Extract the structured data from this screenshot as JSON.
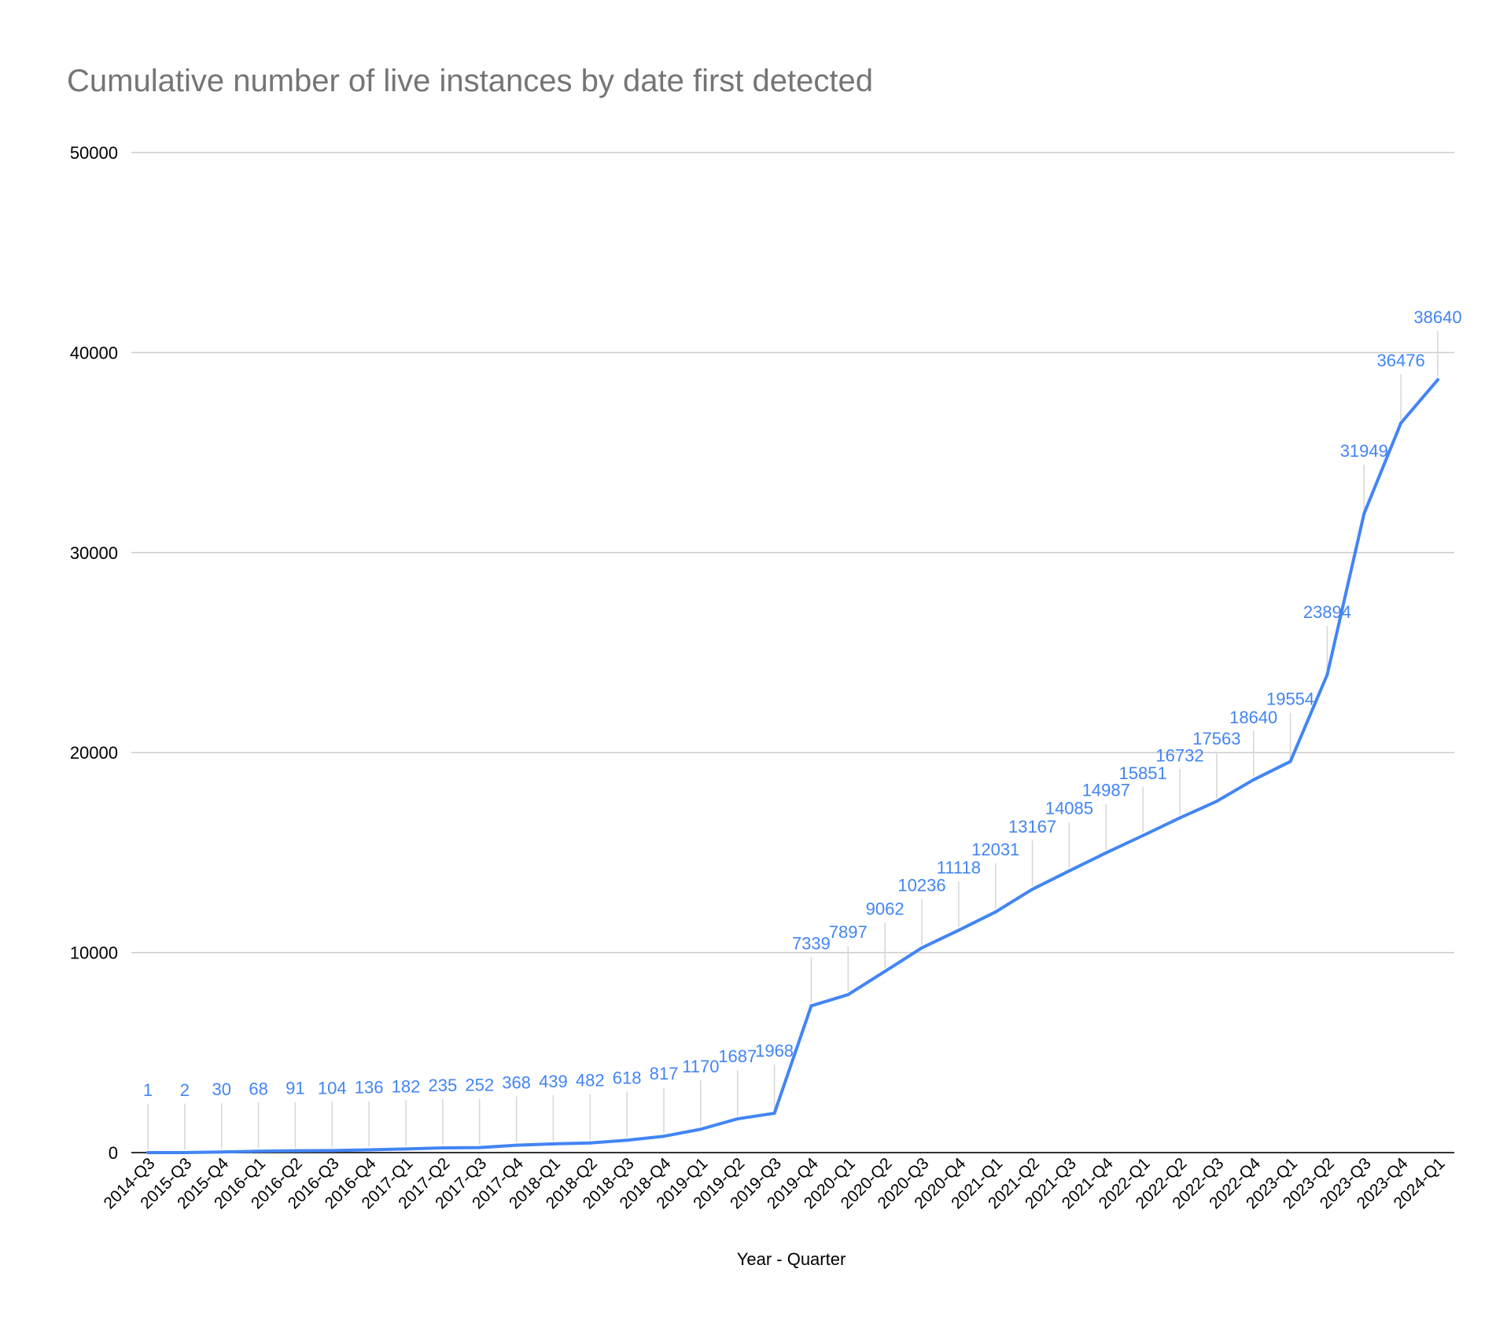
{
  "chart_data": {
    "type": "line",
    "title": "Cumulative number of live instances by date first detected",
    "xlabel": "Year - Quarter",
    "ylabel": "",
    "ylim": [
      0,
      50000
    ],
    "yticks": [
      "0",
      "10000",
      "20000",
      "30000",
      "40000",
      "50000"
    ],
    "grid": true,
    "legend": "none",
    "color": "#4285f4",
    "categories": [
      "2014-Q3",
      "2015-Q3",
      "2015-Q4",
      "2016-Q1",
      "2016-Q2",
      "2016-Q3",
      "2016-Q4",
      "2017-Q1",
      "2017-Q2",
      "2017-Q3",
      "2017-Q4",
      "2018-Q1",
      "2018-Q2",
      "2018-Q3",
      "2018-Q4",
      "2019-Q1",
      "2019-Q2",
      "2019-Q3",
      "2019-Q4",
      "2020-Q1",
      "2020-Q2",
      "2020-Q3",
      "2020-Q4",
      "2021-Q1",
      "2021-Q2",
      "2021-Q3",
      "2021-Q4",
      "2022-Q1",
      "2022-Q2",
      "2022-Q3",
      "2022-Q4",
      "2023-Q1",
      "2023-Q2",
      "2023-Q3",
      "2023-Q4",
      "2024-Q1"
    ],
    "values": [
      1,
      2,
      30,
      68,
      91,
      104,
      136,
      182,
      235,
      252,
      368,
      439,
      482,
      618,
      817,
      1170,
      1687,
      1968,
      7339,
      7897,
      9062,
      10236,
      11118,
      12031,
      13167,
      14085,
      14987,
      15851,
      16732,
      17563,
      18640,
      19554,
      23894,
      31949,
      36476,
      38640
    ],
    "data_labels": [
      "1",
      "2",
      "30",
      "68",
      "91",
      "104",
      "136",
      "182",
      "235",
      "252",
      "368",
      "439",
      "482",
      "618",
      "817",
      "1170",
      "1687",
      "1968",
      "7339",
      "7897",
      "9062",
      "10236",
      "11118",
      "12031",
      "13167",
      "14085",
      "14987",
      "15851",
      "16732",
      "17563",
      "18640",
      "19554",
      "23894",
      "31949",
      "36476",
      "38640"
    ]
  }
}
